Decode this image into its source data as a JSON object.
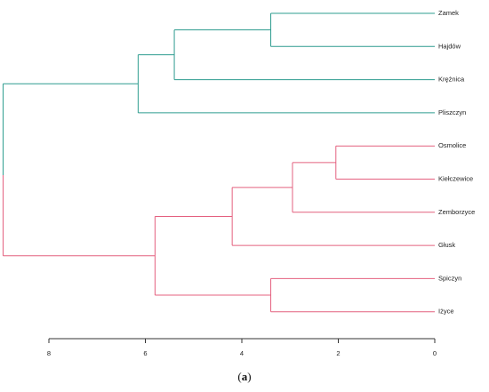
{
  "chart_data": {
    "type": "dendrogram",
    "leaves": [
      "Zamek",
      "Hajdów",
      "Krężnica",
      "Pliszczyn",
      "Osmolice",
      "Kiełczewice",
      "Zemborzyce",
      "Głusk",
      "Spiczyn",
      "Iżyce"
    ],
    "merges": [
      {
        "left": "Zamek",
        "right": "Hajdów",
        "height": 3.4,
        "cluster": "teal"
      },
      {
        "left": "Osmolice",
        "right": "Kiełczewice",
        "height": 2.05,
        "cluster": "pink"
      },
      {
        "left": "Spiczyn",
        "right": "Iżyce",
        "height": 3.4,
        "cluster": "pink"
      },
      {
        "left": "Osmolice+Kiełczewice",
        "right": "Zemborzyce",
        "height": 2.95,
        "cluster": "pink"
      },
      {
        "left": "Osmolice+Kiełczewice+Zemborzyce",
        "right": "Głusk",
        "height": 4.2,
        "cluster": "pink"
      },
      {
        "left": "Zamek+Hajdów",
        "right": "Krężnica",
        "height": 5.4,
        "cluster": "teal"
      },
      {
        "left": "Zamek+Hajdów+Krężnica",
        "right": "Pliszczyn",
        "height": 6.15,
        "cluster": "teal"
      },
      {
        "left": "Osmolice+Kiełczewice+Zemborzyce+Głusk",
        "right": "Spiczyn+Iżyce",
        "height": 5.8,
        "cluster": "pink"
      },
      {
        "left": "teal-cluster",
        "right": "pink-cluster",
        "height": 8.95,
        "cluster": "root"
      }
    ],
    "x_ticks": [
      8,
      6,
      4,
      2,
      0
    ],
    "xlim": [
      8.95,
      0
    ],
    "colors": {
      "teal": "#2e9c8f",
      "pink": "#e4607f",
      "axis": "#333333"
    }
  },
  "caption": {
    "open": "(",
    "letter": "a",
    "close": ")"
  }
}
